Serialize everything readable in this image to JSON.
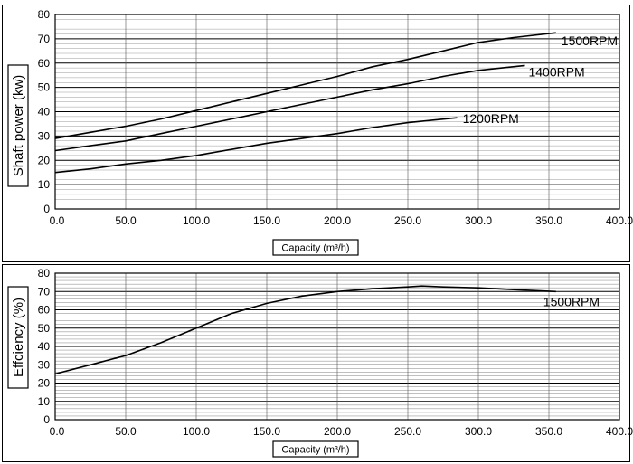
{
  "chart_data": [
    {
      "type": "line",
      "ylabel": "Shaft power (kw)",
      "xlabel": "Capacity (m³/h)",
      "xlim": [
        0,
        400
      ],
      "ylim": [
        0,
        80
      ],
      "x_ticks": [
        "0.0",
        "50.0",
        "100.0",
        "150.0",
        "200.0",
        "250.0",
        "300.0",
        "350.0",
        "400.0"
      ],
      "y_ticks": [
        "0",
        "10",
        "20",
        "30",
        "40",
        "50",
        "60",
        "70",
        "80"
      ],
      "grid": true,
      "series": [
        {
          "name": "1500RPM",
          "x": [
            0,
            25,
            50,
            75,
            100,
            125,
            150,
            175,
            200,
            225,
            250,
            275,
            300,
            325,
            355
          ],
          "y": [
            29,
            31.5,
            34,
            37,
            40.5,
            44,
            47.5,
            51,
            54.5,
            58.5,
            61.5,
            65,
            68.5,
            70.5,
            72.5
          ]
        },
        {
          "name": "1400RPM",
          "x": [
            0,
            25,
            50,
            75,
            100,
            125,
            150,
            175,
            200,
            225,
            250,
            275,
            300,
            333
          ],
          "y": [
            24,
            26,
            28,
            31,
            34,
            37,
            40,
            43,
            46,
            49,
            51.5,
            54.5,
            57,
            59
          ]
        },
        {
          "name": "1200RPM",
          "x": [
            0,
            25,
            50,
            75,
            100,
            125,
            150,
            175,
            200,
            225,
            250,
            285
          ],
          "y": [
            15,
            16.5,
            18.5,
            20,
            22,
            24.5,
            27,
            29,
            31,
            33.5,
            35.5,
            37.5
          ]
        }
      ]
    },
    {
      "type": "line",
      "ylabel": "Effciency (%)",
      "xlabel": "Capacity (m³/h)",
      "xlim": [
        0,
        400
      ],
      "ylim": [
        0,
        80
      ],
      "x_ticks": [
        "0.0",
        "50.0",
        "100.0",
        "150.0",
        "200.0",
        "250.0",
        "300.0",
        "350.0",
        "400.0"
      ],
      "y_ticks": [
        "0",
        "10",
        "20",
        "30",
        "40",
        "50",
        "60",
        "70",
        "80"
      ],
      "grid": true,
      "series": [
        {
          "name": "1500RPM",
          "x": [
            0,
            25,
            50,
            75,
            100,
            125,
            150,
            175,
            200,
            225,
            250,
            260,
            275,
            300,
            325,
            355
          ],
          "y": [
            25,
            30,
            35,
            42,
            50,
            58,
            63.5,
            67.5,
            70,
            71.5,
            72.5,
            73,
            72.5,
            72,
            71,
            70
          ]
        }
      ]
    }
  ]
}
